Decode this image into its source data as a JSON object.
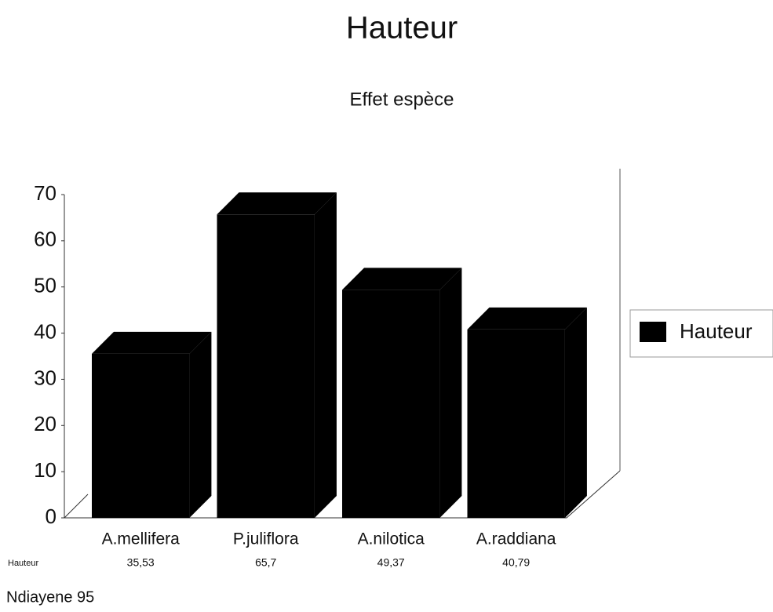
{
  "chart_data": {
    "type": "bar",
    "title": "Hauteur",
    "subtitle": "Effet espèce",
    "categories": [
      "A.mellifera",
      "P.juliflora",
      "A.nilotica",
      "A.raddiana"
    ],
    "series": [
      {
        "name": "Hauteur",
        "color": "#000000",
        "values": [
          35.53,
          65.7,
          49.37,
          40.79
        ],
        "value_labels": [
          "35,53",
          "65,7",
          "49,37",
          "40,79"
        ]
      }
    ],
    "ylim": [
      0,
      70
    ],
    "yticks": [
      0,
      10,
      20,
      30,
      40,
      50,
      60,
      70
    ],
    "legend": "right",
    "footer": "Ndiayene 95"
  }
}
